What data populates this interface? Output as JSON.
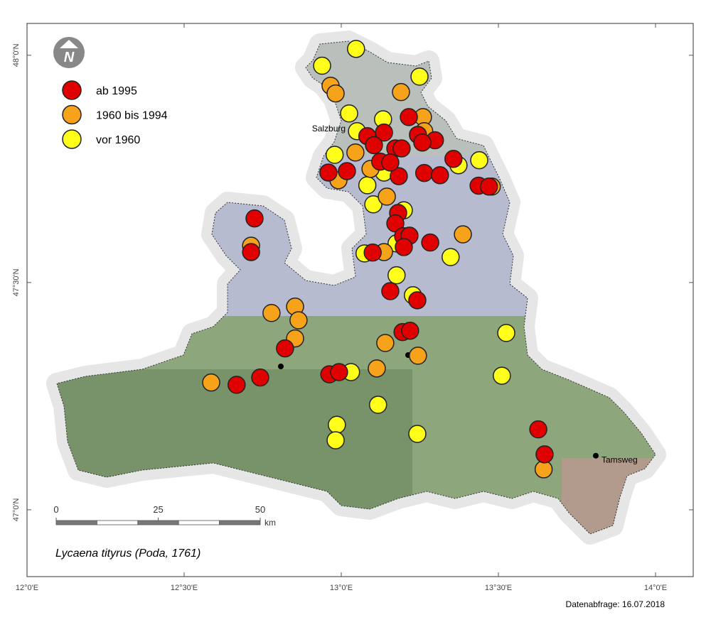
{
  "chart_data": {
    "type": "map",
    "title": "Lycaena tityrus (Poda, 1761)",
    "note": "Datenabfrage: 16.07.2018",
    "north_label": "N",
    "xlim": [
      12.0,
      14.12
    ],
    "ylim": [
      46.853,
      48.07
    ],
    "xticks": [
      {
        "value": 12,
        "label": "12°0'E"
      },
      {
        "value": 12.5,
        "label": "12°30'E"
      },
      {
        "value": 13,
        "label": "13°0'E"
      },
      {
        "value": 13.5,
        "label": "13°30'E"
      },
      {
        "value": 14,
        "label": "14°0'E"
      }
    ],
    "yticks": [
      {
        "value": 47,
        "label": "47°0'N"
      },
      {
        "value": 47.5,
        "label": "47°30'N"
      },
      {
        "value": 48,
        "label": "48°0'N"
      }
    ],
    "places": [
      {
        "name": "Salzburg",
        "x": 13.05,
        "y": 47.8
      },
      {
        "name": "Tamsweg",
        "x": 13.81,
        "y": 47.119
      }
    ],
    "scale_bar": {
      "ticks": [
        0,
        25,
        50
      ],
      "unit": "km"
    },
    "series": [
      {
        "name": "ab 1995",
        "color": "#e00000",
        "x": [
          12.724,
          12.713,
          13.215,
          13.083,
          13.136,
          13.172,
          13.244,
          13.298,
          13.104,
          13.192,
          13.124,
          12.959,
          13.018,
          13.183,
          13.264,
          13.314,
          13.357,
          13.437,
          13.47,
          13.181,
          13.172,
          13.197,
          13.217,
          13.199,
          13.283,
          13.1,
          13.156,
          13.242,
          13.195,
          13.219,
          12.821,
          12.742,
          12.667,
          12.962,
          12.993,
          13.627,
          13.647,
          13.258,
          13.156
        ],
        "y": [
          47.641,
          47.567,
          47.864,
          47.822,
          47.83,
          47.795,
          47.825,
          47.813,
          47.802,
          47.795,
          47.766,
          47.742,
          47.745,
          47.734,
          47.741,
          47.736,
          47.772,
          47.713,
          47.711,
          47.653,
          47.63,
          47.602,
          47.603,
          47.578,
          47.588,
          47.566,
          47.481,
          47.461,
          47.391,
          47.394,
          47.355,
          47.291,
          47.275,
          47.298,
          47.303,
          47.177,
          47.122,
          47.808,
          47.764
        ]
      },
      {
        "name": "1960 bis 1994",
        "color": "#f7a21b",
        "x": [
          12.966,
          12.982,
          13.19,
          13.26,
          13.264,
          13.045,
          13.093,
          12.991,
          13.145,
          13.387,
          12.713,
          12.778,
          12.853,
          12.864,
          12.853,
          13.14,
          13.244,
          13.113,
          12.586,
          13.644,
          13.479,
          13.136
        ],
        "y": [
          47.933,
          47.916,
          47.919,
          47.864,
          47.833,
          47.786,
          47.75,
          47.725,
          47.689,
          47.606,
          47.581,
          47.433,
          47.447,
          47.417,
          47.377,
          47.367,
          47.339,
          47.311,
          47.28,
          47.089,
          47.711,
          47.567
        ]
      },
      {
        "name": "vor 1960",
        "color": "#ffff1a",
        "x": [
          12.939,
          13.047,
          13.249,
          13.025,
          13.05,
          13.133,
          12.979,
          13.439,
          13.083,
          13.102,
          13.199,
          13.074,
          13.176,
          13.348,
          13.176,
          13.228,
          13.525,
          13.511,
          13.031,
          13.117,
          12.986,
          12.982,
          13.242,
          13.136,
          13.373
        ],
        "y": [
          47.977,
          48.014,
          47.953,
          47.872,
          47.833,
          47.859,
          47.781,
          47.769,
          47.714,
          47.672,
          47.659,
          47.564,
          47.586,
          47.556,
          47.516,
          47.472,
          47.389,
          47.295,
          47.303,
          47.231,
          47.187,
          47.153,
          47.167,
          47.742,
          47.758
        ]
      }
    ]
  }
}
